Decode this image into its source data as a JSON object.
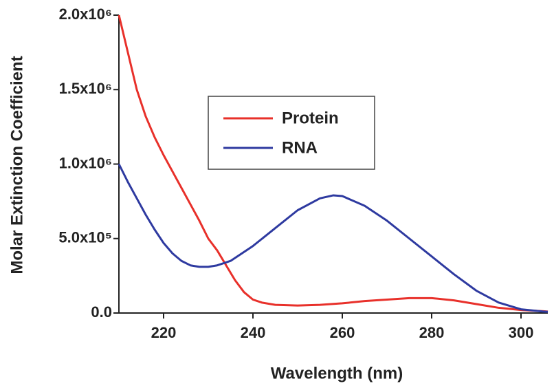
{
  "chart_data": {
    "type": "line",
    "x_label": "Wavelength (nm)",
    "y_label": "Molar Extinction Coefficient",
    "xlim": [
      210,
      306
    ],
    "xticks": [
      220,
      240,
      260,
      280,
      300
    ],
    "ylim": [
      0,
      2000000
    ],
    "yticks": [
      {
        "value": 0,
        "label": "0.0"
      },
      {
        "value": 500000,
        "label": "5.0x10⁵"
      },
      {
        "value": 1000000,
        "label": "1.0x10⁶"
      },
      {
        "value": 1500000,
        "label": "1.5x10⁶"
      },
      {
        "value": 2000000,
        "label": "2.0x10⁶"
      }
    ],
    "grid": false,
    "legend_position": "center",
    "series": [
      {
        "name": "Protein",
        "color": "#e8302a",
        "x": [
          210,
          212,
          214,
          216,
          218,
          220,
          222,
          224,
          226,
          228,
          230,
          232,
          234,
          236,
          238,
          240,
          242,
          245,
          250,
          255,
          260,
          265,
          270,
          275,
          280,
          285,
          290,
          295,
          300,
          305,
          306
        ],
        "values": [
          2000000,
          1750000,
          1500000,
          1320000,
          1180000,
          1060000,
          950000,
          840000,
          730000,
          620000,
          500000,
          420000,
          320000,
          220000,
          140000,
          90000,
          70000,
          55000,
          50000,
          55000,
          65000,
          80000,
          90000,
          100000,
          100000,
          85000,
          60000,
          35000,
          20000,
          12000,
          10000
        ]
      },
      {
        "name": "RNA",
        "color": "#2e3aa0",
        "x": [
          210,
          212,
          214,
          216,
          218,
          220,
          222,
          224,
          226,
          228,
          230,
          232,
          235,
          240,
          245,
          250,
          255,
          258,
          260,
          265,
          270,
          275,
          280,
          285,
          290,
          295,
          300,
          305,
          306
        ],
        "values": [
          1000000,
          880000,
          770000,
          660000,
          560000,
          470000,
          400000,
          350000,
          320000,
          310000,
          310000,
          320000,
          350000,
          450000,
          570000,
          690000,
          770000,
          790000,
          785000,
          720000,
          620000,
          500000,
          380000,
          260000,
          150000,
          70000,
          25000,
          10000,
          8000
        ]
      }
    ]
  }
}
